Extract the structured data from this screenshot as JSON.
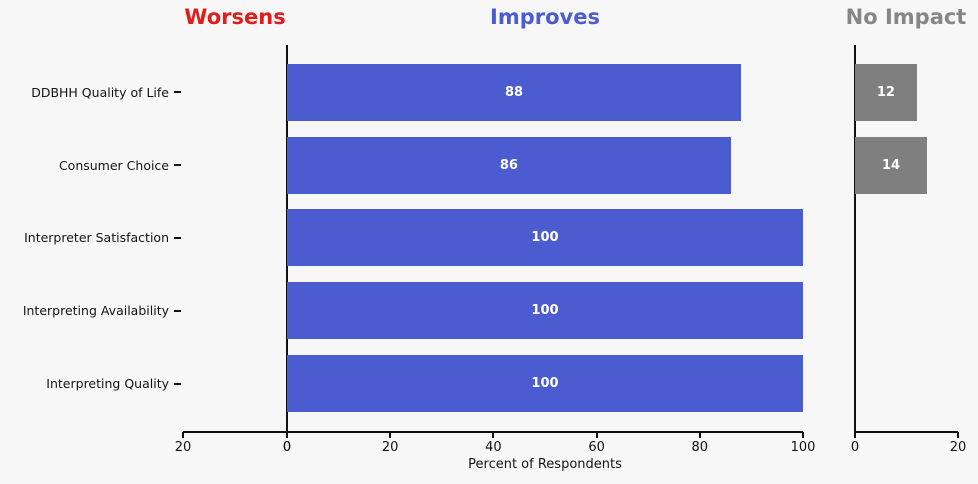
{
  "page": {
    "background": "#f7f7f7",
    "axis_color": "#111111",
    "text_color": "#141414"
  },
  "chart_data": {
    "type": "bar",
    "orientation": "horizontal",
    "xlabel": "Percent of Respondents",
    "value_label_color": "#ffffff",
    "categories": [
      "DDBHH Quality of Life",
      "Consumer Choice",
      "Interpreter Satisfaction",
      "Interpreting Availability",
      "Interpreting Quality"
    ],
    "panels": [
      {
        "id": "worsens",
        "title": "Worsens",
        "title_color": "#de1d1d",
        "bar_color": "#de1d1d",
        "xlim": [
          20,
          0
        ],
        "reversed": true,
        "show_left_spine": false,
        "ticks": [
          20,
          0
        ],
        "values": [
          0,
          0,
          0,
          0,
          0
        ]
      },
      {
        "id": "improves",
        "title": "Improves",
        "title_color": "#4a5ccf",
        "bar_color": "#4a5ccf",
        "xlim": [
          0,
          100
        ],
        "reversed": false,
        "show_left_spine": true,
        "ticks": [
          0,
          20,
          40,
          60,
          80,
          100
        ],
        "values": [
          88,
          86,
          100,
          100,
          100
        ]
      },
      {
        "id": "no-impact",
        "title": "No Impact",
        "title_color": "#868686",
        "bar_color": "#7f7f7f",
        "xlim": [
          0,
          20
        ],
        "reversed": false,
        "show_left_spine": true,
        "ticks": [
          0,
          20
        ],
        "values": [
          12,
          14,
          0,
          0,
          0
        ]
      }
    ]
  }
}
